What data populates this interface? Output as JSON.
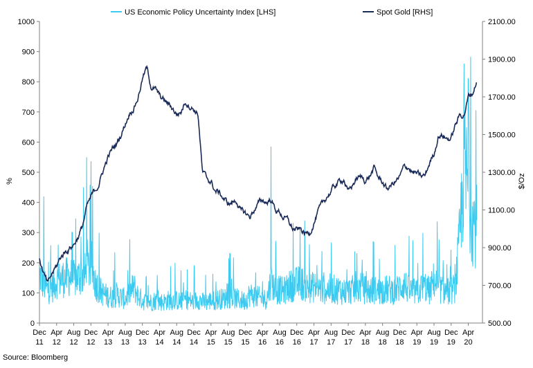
{
  "chart_data": {
    "type": "line",
    "legend_position": "top",
    "grid": false,
    "footnote": "Source: Bloomberg",
    "x_tick_labels": [
      {
        "month": "Dec",
        "year": "11"
      },
      {
        "month": "Apr",
        "year": "12"
      },
      {
        "month": "Aug",
        "year": "12"
      },
      {
        "month": "Dec",
        "year": "12"
      },
      {
        "month": "Apr",
        "year": "13"
      },
      {
        "month": "Aug",
        "year": "13"
      },
      {
        "month": "Dec",
        "year": "13"
      },
      {
        "month": "Apr",
        "year": "14"
      },
      {
        "month": "Aug",
        "year": "14"
      },
      {
        "month": "Dec",
        "year": "14"
      },
      {
        "month": "Apr",
        "year": "15"
      },
      {
        "month": "Aug",
        "year": "15"
      },
      {
        "month": "Dec",
        "year": "15"
      },
      {
        "month": "Apr",
        "year": "16"
      },
      {
        "month": "Aug",
        "year": "16"
      },
      {
        "month": "Dec",
        "year": "16"
      },
      {
        "month": "Apr",
        "year": "17"
      },
      {
        "month": "Aug",
        "year": "17"
      },
      {
        "month": "Dec",
        "year": "17"
      },
      {
        "month": "Apr",
        "year": "18"
      },
      {
        "month": "Aug",
        "year": "18"
      },
      {
        "month": "Dec",
        "year": "18"
      },
      {
        "month": "Apr",
        "year": "19"
      },
      {
        "month": "Aug",
        "year": "19"
      },
      {
        "month": "Dec",
        "year": "19"
      },
      {
        "month": "Apr",
        "year": "20"
      }
    ],
    "y_left": {
      "label": "%",
      "min": 0,
      "max": 1000,
      "ticks": [
        "0",
        "100",
        "200",
        "300",
        "400",
        "500",
        "600",
        "700",
        "800",
        "900",
        "1000"
      ]
    },
    "y_right": {
      "label": "$/Oz",
      "min": 500,
      "max": 2100,
      "ticks": [
        "500.00",
        "700.00",
        "900.00",
        "1100.00",
        "1300.00",
        "1500.00",
        "1700.00",
        "1900.00",
        "2100.00"
      ]
    },
    "series": [
      {
        "name": "US Economic Policy Uncertainty Index [LHS]",
        "axis": "left",
        "color": "#3ccaf0",
        "x": [
          "2011-12",
          "2012-01",
          "2012-02",
          "2012-03",
          "2012-04",
          "2012-05",
          "2012-06",
          "2012-07",
          "2012-08",
          "2012-09",
          "2012-10",
          "2012-11",
          "2012-12",
          "2013-01",
          "2013-02",
          "2013-03",
          "2013-04",
          "2013-05",
          "2013-06",
          "2013-07",
          "2013-08",
          "2013-09",
          "2013-10",
          "2013-11",
          "2013-12",
          "2014-01",
          "2014-02",
          "2014-03",
          "2014-04",
          "2014-05",
          "2014-06",
          "2014-07",
          "2014-08",
          "2014-09",
          "2014-10",
          "2014-11",
          "2014-12",
          "2015-01",
          "2015-02",
          "2015-03",
          "2015-04",
          "2015-05",
          "2015-06",
          "2015-07",
          "2015-08",
          "2015-09",
          "2015-10",
          "2015-11",
          "2015-12",
          "2016-01",
          "2016-02",
          "2016-03",
          "2016-04",
          "2016-05",
          "2016-06",
          "2016-07",
          "2016-08",
          "2016-09",
          "2016-10",
          "2016-11",
          "2016-12",
          "2017-01",
          "2017-02",
          "2017-03",
          "2017-04",
          "2017-05",
          "2017-06",
          "2017-07",
          "2017-08",
          "2017-09",
          "2017-10",
          "2017-11",
          "2017-12",
          "2018-01",
          "2018-02",
          "2018-03",
          "2018-04",
          "2018-05",
          "2018-06",
          "2018-07",
          "2018-08",
          "2018-09",
          "2018-10",
          "2018-11",
          "2018-12",
          "2019-01",
          "2019-02",
          "2019-03",
          "2019-04",
          "2019-05",
          "2019-06",
          "2019-07",
          "2019-08",
          "2019-09",
          "2019-10",
          "2019-11",
          "2019-12",
          "2020-01",
          "2020-02",
          "2020-03",
          "2020-04",
          "2020-05",
          "2020-06"
        ],
        "values": [
          165,
          125,
          110,
          120,
          140,
          145,
          150,
          155,
          145,
          150,
          160,
          165,
          200,
          135,
          110,
          95,
          90,
          85,
          95,
          85,
          80,
          100,
          120,
          90,
          75,
          70,
          70,
          75,
          70,
          70,
          75,
          75,
          75,
          70,
          80,
          75,
          70,
          80,
          70,
          70,
          75,
          75,
          80,
          80,
          85,
          85,
          80,
          75,
          75,
          95,
          90,
          85,
          80,
          80,
          140,
          110,
          110,
          105,
          120,
          125,
          130,
          135,
          120,
          115,
          120,
          115,
          110,
          110,
          115,
          110,
          110,
          105,
          105,
          110,
          110,
          120,
          110,
          105,
          110,
          105,
          110,
          110,
          110,
          105,
          120,
          130,
          110,
          105,
          100,
          115,
          120,
          105,
          145,
          115,
          110,
          105,
          105,
          120,
          280,
          520,
          450,
          340,
          320
        ],
        "peaks": [
          {
            "x": "2012-01",
            "value": 420
          },
          {
            "x": "2012-11",
            "value": 550
          },
          {
            "x": "2016-06",
            "value": 585
          },
          {
            "x": "2020-03",
            "value": 860
          },
          {
            "x": "2020-04",
            "value": 810
          }
        ]
      },
      {
        "name": "Spot Gold [RHS]",
        "axis": "right",
        "color": "#1a2a57",
        "x": [
          "2011-12",
          "2012-01",
          "2012-02",
          "2012-03",
          "2012-04",
          "2012-05",
          "2012-06",
          "2012-07",
          "2012-08",
          "2012-09",
          "2012-10",
          "2012-11",
          "2012-12",
          "2013-01",
          "2013-02",
          "2013-03",
          "2013-04",
          "2013-05",
          "2013-06",
          "2013-07",
          "2013-08",
          "2013-09",
          "2013-10",
          "2013-11",
          "2013-12",
          "2014-01",
          "2014-02",
          "2014-03",
          "2014-04",
          "2014-05",
          "2014-06",
          "2014-07",
          "2014-08",
          "2014-09",
          "2014-10",
          "2014-11",
          "2014-12",
          "2015-01",
          "2015-02",
          "2015-03",
          "2015-04",
          "2015-05",
          "2015-06",
          "2015-07",
          "2015-08",
          "2015-09",
          "2015-10",
          "2015-11",
          "2015-12",
          "2016-01",
          "2016-02",
          "2016-03",
          "2016-04",
          "2016-05",
          "2016-06",
          "2016-07",
          "2016-08",
          "2016-09",
          "2016-10",
          "2016-11",
          "2016-12",
          "2017-01",
          "2017-02",
          "2017-03",
          "2017-04",
          "2017-05",
          "2017-06",
          "2017-07",
          "2017-08",
          "2017-09",
          "2017-10",
          "2017-11",
          "2017-12",
          "2018-01",
          "2018-02",
          "2018-03",
          "2018-04",
          "2018-05",
          "2018-06",
          "2018-07",
          "2018-08",
          "2018-09",
          "2018-10",
          "2018-11",
          "2018-12",
          "2019-01",
          "2019-02",
          "2019-03",
          "2019-04",
          "2019-05",
          "2019-06",
          "2019-07",
          "2019-08",
          "2019-09",
          "2019-10",
          "2019-11",
          "2019-12",
          "2020-01",
          "2020-02",
          "2020-03",
          "2020-04",
          "2020-05",
          "2020-06"
        ],
        "values": [
          850,
          760,
          700,
          760,
          800,
          850,
          880,
          900,
          920,
          960,
          1010,
          1110,
          1160,
          1200,
          1250,
          1320,
          1380,
          1420,
          1450,
          1500,
          1560,
          1620,
          1650,
          1700,
          1800,
          1850,
          1760,
          1740,
          1700,
          1680,
          1660,
          1640,
          1610,
          1620,
          1680,
          1660,
          1640,
          1610,
          1300,
          1260,
          1250,
          1200,
          1190,
          1160,
          1130,
          1140,
          1150,
          1090,
          1080,
          1060,
          1100,
          1130,
          1150,
          1140,
          1160,
          1100,
          1090,
          1060,
          1040,
          1000,
          990,
          990,
          970,
          980,
          1040,
          1090,
          1120,
          1170,
          1200,
          1230,
          1250,
          1270,
          1190,
          1230,
          1270,
          1270,
          1260,
          1280,
          1320,
          1270,
          1250,
          1210,
          1230,
          1250,
          1270,
          1320,
          1330,
          1300,
          1290,
          1270,
          1280,
          1350,
          1400,
          1500,
          1500,
          1480,
          1480,
          1550,
          1600,
          1610,
          1700,
          1720,
          1790
        ]
      }
    ]
  }
}
